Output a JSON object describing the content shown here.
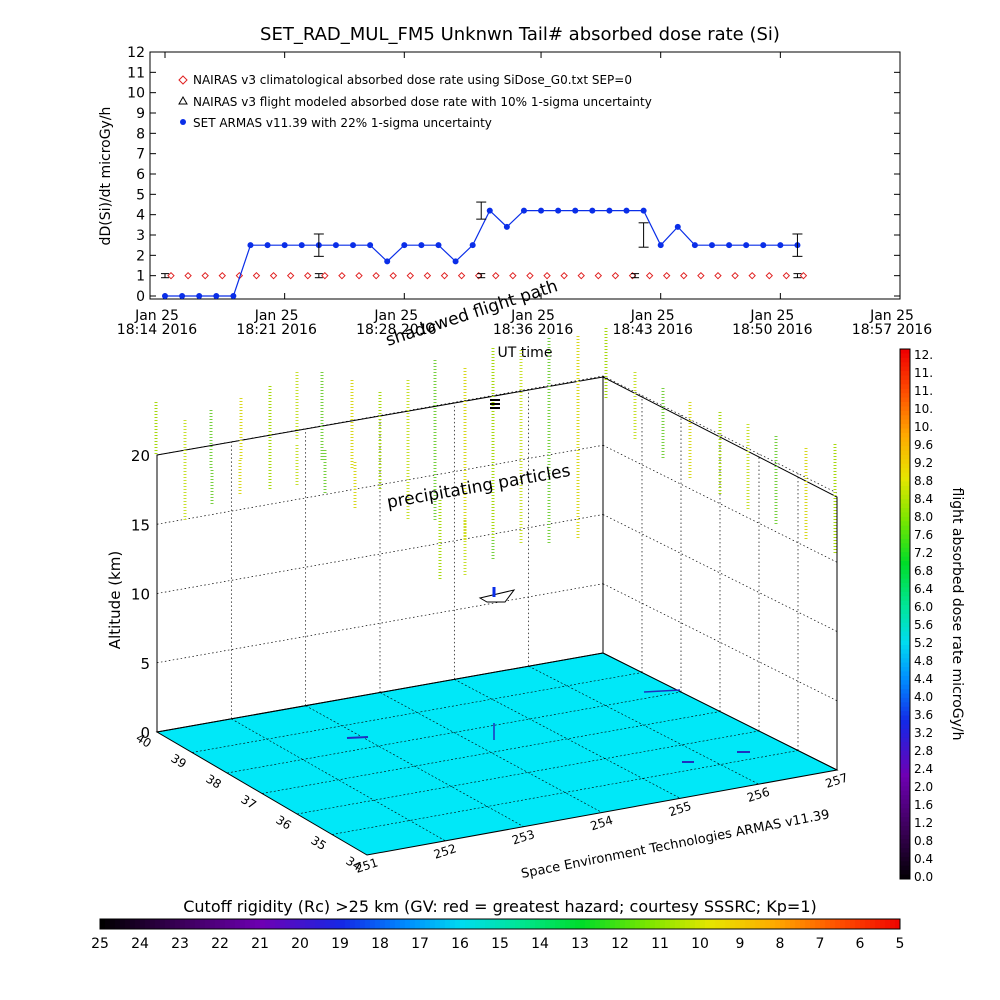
{
  "chart_data": [
    {
      "type": "line",
      "title": "SET_RAD_MUL_FM5 Unknwn Tail#  absorbed dose rate (Si)",
      "ylabel": "dD(Si)/dt microGy/h",
      "xlabel": "UT time",
      "ylim": [
        0,
        12
      ],
      "yticks": [
        "0",
        "1",
        "2",
        "3",
        "4",
        "5",
        "6",
        "7",
        "8",
        "9",
        "10",
        "11",
        "12"
      ],
      "xlim": [
        0,
        43
      ],
      "xticks": [
        {
          "x": 0,
          "top": "Jan 25",
          "bottom": "18:14 2016"
        },
        {
          "x": 7,
          "top": "Jan 25",
          "bottom": "18:21 2016"
        },
        {
          "x": 14,
          "top": "Jan 25",
          "bottom": "18:28 2016"
        },
        {
          "x": 22,
          "top": "Jan 25",
          "bottom": "18:36 2016"
        },
        {
          "x": 29,
          "top": "Jan 25",
          "bottom": "18:43 2016"
        },
        {
          "x": 36,
          "top": "Jan 25",
          "bottom": "18:50 2016"
        },
        {
          "x": 43,
          "top": "Jan 25",
          "bottom": "18:57 2016"
        }
      ],
      "legend_position": "top-left",
      "series": [
        {
          "name": "NAIRAS v3 climatological absorbed dose rate using SiDose_G0.txt SEP=0",
          "marker": "diamond",
          "color": "#e02020",
          "x": [
            0,
            1,
            2,
            3,
            4,
            5,
            6,
            7,
            8,
            9,
            10,
            11,
            12,
            13,
            14,
            15,
            16,
            17,
            18,
            19,
            20,
            21,
            22,
            23,
            24,
            25,
            26,
            27,
            28,
            29,
            30,
            31,
            32,
            33,
            34,
            35,
            36,
            37
          ],
          "values": [
            1,
            1,
            1,
            1,
            1,
            1,
            1,
            1,
            1,
            1,
            1,
            1,
            1,
            1,
            1,
            1,
            1,
            1,
            1,
            1,
            1,
            1,
            1,
            1,
            1,
            1,
            1,
            1,
            1,
            1,
            1,
            1,
            1,
            1,
            1,
            1,
            1,
            1
          ]
        },
        {
          "name": "NAIRAS v3 flight modeled absorbed dose rate with 10% 1-sigma uncertainty",
          "marker": "triangle",
          "color": "#000000",
          "x": [
            0,
            9,
            18.5,
            27.5,
            37
          ],
          "values": [
            1,
            1,
            1,
            1,
            1
          ],
          "error": [
            0.1,
            0.1,
            0.1,
            0.1,
            0.1
          ]
        },
        {
          "name": "SET ARMAS v11.39 with 22% 1-sigma uncertainty",
          "marker": "circle",
          "color": "#0a2ee8",
          "x": [
            0,
            1,
            2,
            3,
            4,
            5,
            6,
            7,
            8,
            9,
            10,
            11,
            12,
            13,
            14,
            15,
            16,
            17,
            18,
            19,
            20,
            21,
            22,
            23,
            24,
            25,
            26,
            27,
            28,
            29,
            30,
            31,
            32,
            33,
            34,
            35,
            36,
            37
          ],
          "values": [
            0,
            0,
            0,
            0,
            0,
            2.5,
            2.5,
            2.5,
            2.5,
            2.5,
            2.5,
            2.5,
            2.5,
            1.7,
            2.5,
            2.5,
            2.5,
            1.7,
            2.5,
            4.2,
            3.4,
            4.2,
            4.2,
            4.2,
            4.2,
            4.2,
            4.2,
            4.2,
            4.2,
            2.5,
            3.4,
            2.5,
            2.5,
            2.5,
            2.5,
            2.5,
            2.5,
            2.5
          ],
          "error_bars": [
            {
              "x": 9,
              "value": 2.5,
              "err": 0.55
            },
            {
              "x": 18.5,
              "value": 4.2,
              "err": 0.42
            },
            {
              "x": 28,
              "value": 3.0,
              "err": 0.6
            },
            {
              "x": 37,
              "value": 2.5,
              "err": 0.55
            }
          ]
        }
      ]
    },
    {
      "type": "scatter",
      "title": "",
      "zlabel": "Altitude (km)",
      "zticks": [
        "0",
        "5",
        "10",
        "15",
        "20"
      ],
      "xticks": [
        "251",
        "252",
        "253",
        "254",
        "255",
        "256",
        "257"
      ],
      "yticks": [
        "34",
        "35",
        "36",
        "37",
        "38",
        "39",
        "40"
      ],
      "annotations": [
        "precipitating particles",
        "shadowed flight path"
      ],
      "credit": "Space Environment Technologies ARMAS v11.39",
      "surface_color": "#00e8f8"
    },
    {
      "type": "heatmap",
      "orientation": "vertical",
      "label": "flight absorbed dose rate microGy/h",
      "ticks": [
        "0.0",
        "0.4",
        "0.8",
        "1.2",
        "1.6",
        "2.0",
        "2.4",
        "2.8",
        "3.2",
        "3.6",
        "4.0",
        "4.4",
        "4.8",
        "5.2",
        "5.6",
        "6.0",
        "6.4",
        "6.8",
        "7.2",
        "7.6",
        "8.0",
        "8.4",
        "8.8",
        "9.2",
        "9.6",
        "10.",
        "10.",
        "11.",
        "11.",
        "12."
      ],
      "range": [
        0,
        12
      ]
    },
    {
      "type": "heatmap",
      "orientation": "horizontal",
      "label": "Cutoff rigidity (Rc) >25 km (GV: red = greatest hazard; courtesy SSSRC; Kp=1)",
      "ticks": [
        "25",
        "24",
        "23",
        "22",
        "21",
        "20",
        "19",
        "18",
        "17",
        "16",
        "15",
        "14",
        "13",
        "12",
        "11",
        "10",
        "9",
        "8",
        "7",
        "6",
        "5"
      ],
      "range": [
        25,
        5
      ]
    }
  ]
}
